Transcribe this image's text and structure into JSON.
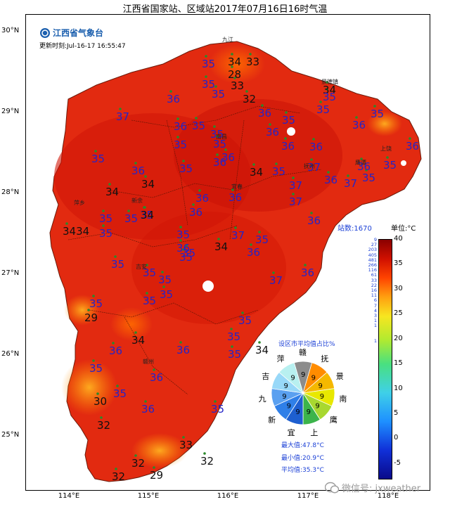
{
  "title": "江西省国家站、区域站2017年07月16日16时气温",
  "logo": {
    "icon": "cma-logo-icon",
    "text": "江西省气象台"
  },
  "update_time": "更新时刻:Jul-16-17  16:55:47",
  "station_count": "站数:1670",
  "unit_label": "单位:°C",
  "lat_labels": [
    "30°N",
    "29°N",
    "28°N",
    "27°N",
    "26°N",
    "25°N"
  ],
  "lon_labels": [
    "114°E",
    "115°E",
    "116°E",
    "117°E",
    "118°E"
  ],
  "colorbar": {
    "ticks": [
      "40",
      "35",
      "30",
      "25",
      "20",
      "15",
      "10",
      "5",
      "0",
      "-5"
    ],
    "range": [
      -8,
      40
    ],
    "counts": [
      "9",
      "27",
      "203",
      "405",
      "481",
      "266",
      "116",
      "61",
      "33",
      "22",
      "16",
      "11",
      "6",
      "7",
      "4",
      "3",
      "1",
      "1",
      "",
      "",
      "1"
    ]
  },
  "city_labels": [
    "九江",
    "景德镇",
    "南昌",
    "鹰潭",
    "抚州",
    "宜春",
    "萍乡",
    "新余",
    "吉安",
    "赣州",
    "上饶"
  ],
  "station_values": [
    {
      "v": "35",
      "c": "blue"
    },
    {
      "v": "34",
      "c": "black"
    },
    {
      "v": "33",
      "c": "black"
    },
    {
      "v": "35",
      "c": "blue"
    },
    {
      "v": "28",
      "c": "black"
    },
    {
      "v": "33",
      "c": "black"
    },
    {
      "v": "35",
      "c": "blue"
    },
    {
      "v": "32",
      "c": "black"
    },
    {
      "v": "34",
      "c": "black"
    },
    {
      "v": "35",
      "c": "blue"
    },
    {
      "v": "36",
      "c": "blue"
    },
    {
      "v": "37",
      "c": "blue"
    },
    {
      "v": "36",
      "c": "blue"
    },
    {
      "v": "35",
      "c": "blue"
    },
    {
      "v": "35",
      "c": "blue"
    },
    {
      "v": "35",
      "c": "blue"
    },
    {
      "v": "36",
      "c": "blue"
    },
    {
      "v": "36",
      "c": "blue"
    },
    {
      "v": "35",
      "c": "blue"
    },
    {
      "v": "35",
      "c": "blue"
    },
    {
      "v": "35",
      "c": "blue"
    },
    {
      "v": "35",
      "c": "blue"
    },
    {
      "v": "36",
      "c": "blue"
    },
    {
      "v": "36",
      "c": "blue"
    },
    {
      "v": "36",
      "c": "blue"
    },
    {
      "v": "36",
      "c": "blue"
    },
    {
      "v": "36",
      "c": "blue"
    },
    {
      "v": "36",
      "c": "blue"
    },
    {
      "v": "35",
      "c": "blue"
    },
    {
      "v": "35",
      "c": "blue"
    },
    {
      "v": "36",
      "c": "blue"
    },
    {
      "v": "34",
      "c": "black"
    },
    {
      "v": "35",
      "c": "blue"
    },
    {
      "v": "37",
      "c": "blue"
    },
    {
      "v": "36",
      "c": "blue"
    },
    {
      "v": "37",
      "c": "blue"
    },
    {
      "v": "36",
      "c": "blue"
    },
    {
      "v": "35",
      "c": "blue"
    },
    {
      "v": "35",
      "c": "blue"
    },
    {
      "v": "34",
      "c": "black"
    },
    {
      "v": "34",
      "c": "black"
    },
    {
      "v": "35",
      "c": "blue"
    },
    {
      "v": "36",
      "c": "blue"
    },
    {
      "v": "35",
      "c": "blue"
    },
    {
      "v": "37",
      "c": "blue"
    },
    {
      "v": "36",
      "c": "blue"
    },
    {
      "v": "37",
      "c": "blue"
    },
    {
      "v": "36",
      "c": "blue"
    },
    {
      "v": "37",
      "c": "blue"
    },
    {
      "v": "35",
      "c": "blue"
    },
    {
      "v": "36",
      "c": "blue"
    },
    {
      "v": "36",
      "c": "blue"
    },
    {
      "v": "3434",
      "c": "black"
    },
    {
      "v": "35",
      "c": "blue"
    },
    {
      "v": "35",
      "c": "blue"
    },
    {
      "v": "34",
      "c": "black"
    },
    {
      "v": "35",
      "c": "blue"
    },
    {
      "v": "36",
      "c": "blue"
    },
    {
      "v": "35",
      "c": "blue"
    },
    {
      "v": "35",
      "c": "blue"
    },
    {
      "v": "34",
      "c": "black"
    },
    {
      "v": "37",
      "c": "blue"
    },
    {
      "v": "36",
      "c": "blue"
    },
    {
      "v": "35",
      "c": "blue"
    },
    {
      "v": "35",
      "c": "blue"
    },
    {
      "v": "35",
      "c": "blue"
    },
    {
      "v": "35",
      "c": "blue"
    },
    {
      "v": "35",
      "c": "blue"
    },
    {
      "v": "35",
      "c": "blue"
    },
    {
      "v": "29",
      "c": "black"
    },
    {
      "v": "34",
      "c": "black"
    },
    {
      "v": "36",
      "c": "blue"
    },
    {
      "v": "36",
      "c": "blue"
    },
    {
      "v": "35",
      "c": "blue"
    },
    {
      "v": "34",
      "c": "black"
    },
    {
      "v": "35",
      "c": "blue"
    },
    {
      "v": "35",
      "c": "blue"
    },
    {
      "v": "36",
      "c": "blue"
    },
    {
      "v": "30",
      "c": "black"
    },
    {
      "v": "35",
      "c": "blue"
    },
    {
      "v": "35",
      "c": "blue"
    },
    {
      "v": "32",
      "c": "black"
    },
    {
      "v": "36",
      "c": "blue"
    },
    {
      "v": "35",
      "c": "blue"
    },
    {
      "v": "33",
      "c": "black"
    },
    {
      "v": "32",
      "c": "black"
    },
    {
      "v": "32",
      "c": "black"
    },
    {
      "v": "32",
      "c": "black"
    },
    {
      "v": "29",
      "c": "black"
    }
  ],
  "pie_chart": {
    "title": "设区市平均值占比%",
    "slices": [
      {
        "label": "赣",
        "value": "9",
        "color": "#8c8c8c"
      },
      {
        "label": "抚",
        "value": "9",
        "color": "#ff8c00"
      },
      {
        "label": "景",
        "value": "9",
        "color": "#f5b800"
      },
      {
        "label": "南",
        "value": "9",
        "color": "#e8e800"
      },
      {
        "label": "鹰",
        "value": "9",
        "color": "#a8d830"
      },
      {
        "label": "上",
        "value": "9",
        "color": "#3cb44b"
      },
      {
        "label": "宜",
        "value": "9",
        "color": "#1e5fd0"
      },
      {
        "label": "新",
        "value": "9",
        "color": "#2f7fe8"
      },
      {
        "label": "九",
        "value": "9",
        "color": "#5aa0f0"
      },
      {
        "label": "吉",
        "value": "9",
        "color": "#98d8f8"
      },
      {
        "label": "萍",
        "value": "9",
        "color": "#b8f0f0"
      }
    ]
  },
  "stats": {
    "max": "最大值:47.8°C",
    "min": "最小值:20.9°C",
    "mean": "平均值:35.3°C"
  },
  "watermark": {
    "icon": "wechat-icon",
    "text": "微信号: jxweather"
  }
}
